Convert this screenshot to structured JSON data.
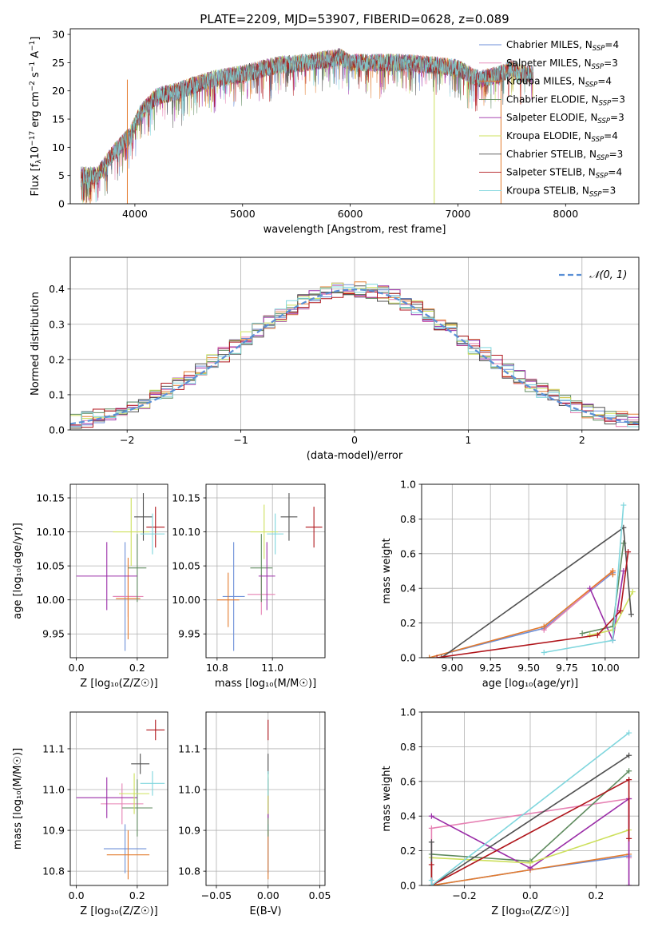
{
  "figure": {
    "title": "PLATE=2209, MJD=53907, FIBERID=0628, z=0.089"
  },
  "models": [
    {
      "name": "Chabrier MILES",
      "nssp": "4",
      "color": "#6c8fd8"
    },
    {
      "name": "Salpeter MILES",
      "nssp": "3",
      "color": "#e682b4"
    },
    {
      "name": "Kroupa MILES",
      "nssp": "4",
      "color": "#e37b2e"
    },
    {
      "name": "Chabrier ELODIE",
      "nssp": "3",
      "color": "#5e8a5e"
    },
    {
      "name": "Salpeter ELODIE",
      "nssp": "3",
      "color": "#9b2ea8"
    },
    {
      "name": "Kroupa ELODIE",
      "nssp": "4",
      "color": "#cde05c"
    },
    {
      "name": "Chabrier STELIB",
      "nssp": "3",
      "color": "#505050"
    },
    {
      "name": "Salpeter STELIB",
      "nssp": "4",
      "color": "#b0161c"
    },
    {
      "name": "Kroupa STELIB",
      "nssp": "3",
      "color": "#7fd6dd"
    }
  ],
  "chart_data": [
    {
      "id": "spectrum",
      "type": "line",
      "xlabel": "wavelength [Angstrom, rest frame]",
      "ylabel": "Flux [f",
      "ylabel_sub": "λ",
      "ylabel_rest": "10",
      "ylabel_exp1": "−17",
      "ylabel_mid": " erg cm",
      "ylabel_exp2": "−2",
      "ylabel_mid2": " s",
      "ylabel_exp3": "−1",
      "ylabel_end": " A",
      "ylabel_exp4": "−1",
      "ylabel_close": "]",
      "xlim": [
        3400,
        8680
      ],
      "ylim": [
        0,
        31
      ],
      "xticks": [
        4000,
        5000,
        6000,
        7000,
        8000
      ],
      "yticks": [
        0,
        5,
        10,
        15,
        20,
        25,
        30
      ],
      "legend": "top-right",
      "legend_nssp_prefix": "N",
      "legend_nssp_sub": "SSP",
      "continuum_anchors": [
        [
          3500,
          5
        ],
        [
          3650,
          5
        ],
        [
          3800,
          9
        ],
        [
          3950,
          12
        ],
        [
          4050,
          16
        ],
        [
          4200,
          19
        ],
        [
          4400,
          20
        ],
        [
          4700,
          22
        ],
        [
          5000,
          23
        ],
        [
          5300,
          24.5
        ],
        [
          5600,
          25
        ],
        [
          5900,
          26
        ],
        [
          6000,
          25
        ],
        [
          6200,
          25
        ],
        [
          6500,
          25
        ],
        [
          6800,
          24.5
        ],
        [
          7000,
          24
        ],
        [
          7200,
          22
        ],
        [
          7400,
          23
        ],
        [
          7500,
          24
        ],
        [
          7600,
          23
        ],
        [
          7700,
          23
        ]
      ],
      "dropouts": [
        {
          "x": 3930,
          "model": "Kroupa MILES"
        },
        {
          "x": 6780,
          "model": "Kroupa ELODIE"
        },
        {
          "x": 7400,
          "model": "Kroupa MILES"
        }
      ]
    },
    {
      "id": "residuals",
      "type": "histogram",
      "xlabel": "(data-model)/error",
      "ylabel": "Normed distribution",
      "xlim": [
        -2.5,
        2.5
      ],
      "ylim": [
        0,
        0.49
      ],
      "xticks": [
        -2,
        -1,
        0,
        1,
        2
      ],
      "yticks": [
        0.0,
        0.1,
        0.2,
        0.3,
        0.4
      ],
      "bin_width": 0.1,
      "reference": {
        "name": "𝒩(0, 1)",
        "color": "#5a8fd6",
        "style": "dashed"
      },
      "legend": "top-right",
      "grid": true
    },
    {
      "id": "age-vs-Z",
      "type": "errorbar",
      "xlabel": "Z [log₁₀(Z/Z☉)]",
      "ylabel": "age  [log₁₀(age/yr)]",
      "xlim": [
        -0.02,
        0.3
      ],
      "ylim": [
        9.915,
        10.17
      ],
      "xticks": [
        0.0,
        0.2
      ],
      "yticks": [
        9.95,
        10.0,
        10.05,
        10.1,
        10.15
      ],
      "points": [
        {
          "model": "Chabrier MILES",
          "x": 0.16,
          "xerr": 0.04,
          "y": 10.005,
          "yerr": 0.08
        },
        {
          "model": "Salpeter MILES",
          "x": 0.17,
          "xerr": 0.05,
          "y": 10.005,
          "yerr": 0.03
        },
        {
          "model": "Kroupa MILES",
          "x": 0.17,
          "xerr": 0.04,
          "y": 10.002,
          "yerr": 0.06
        },
        {
          "model": "Chabrier ELODIE",
          "x": 0.2,
          "xerr": 0.03,
          "y": 10.047,
          "yerr": 0.05
        },
        {
          "model": "Salpeter ELODIE",
          "x": 0.1,
          "xerr": 0.1,
          "y": 10.035,
          "yerr": 0.05
        },
        {
          "model": "Kroupa ELODIE",
          "x": 0.18,
          "xerr": 0.06,
          "y": 10.1,
          "yerr": 0.05
        },
        {
          "model": "Chabrier STELIB",
          "x": 0.22,
          "xerr": 0.03,
          "y": 10.122,
          "yerr": 0.035
        },
        {
          "model": "Salpeter STELIB",
          "x": 0.26,
          "xerr": 0.03,
          "y": 10.107,
          "yerr": 0.03
        },
        {
          "model": "Kroupa STELIB",
          "x": 0.25,
          "xerr": 0.04,
          "y": 10.097,
          "yerr": 0.03
        }
      ]
    },
    {
      "id": "age-vs-mass",
      "type": "errorbar",
      "xlabel": "mass [log₁₀(M/M☉)]",
      "ylabel": "",
      "xlim": [
        10.76,
        11.19
      ],
      "ylim": [
        9.915,
        10.17
      ],
      "xticks": [
        10.8,
        11.0
      ],
      "yticks": [
        9.95,
        10.0,
        10.05,
        10.1,
        10.15
      ],
      "points": [
        {
          "model": "Chabrier MILES",
          "x": 10.86,
          "xerr": 0.04,
          "y": 10.005,
          "yerr": 0.08
        },
        {
          "model": "Salpeter MILES",
          "x": 10.96,
          "xerr": 0.05,
          "y": 10.008,
          "yerr": 0.03
        },
        {
          "model": "Kroupa MILES",
          "x": 10.84,
          "xerr": 0.04,
          "y": 10.0,
          "yerr": 0.04
        },
        {
          "model": "Chabrier ELODIE",
          "x": 10.96,
          "xerr": 0.04,
          "y": 10.047,
          "yerr": 0.05
        },
        {
          "model": "Salpeter ELODIE",
          "x": 10.98,
          "xerr": 0.03,
          "y": 10.035,
          "yerr": 0.05
        },
        {
          "model": "Kroupa ELODIE",
          "x": 10.97,
          "xerr": 0.05,
          "y": 10.1,
          "yerr": 0.04
        },
        {
          "model": "Chabrier STELIB",
          "x": 11.06,
          "xerr": 0.03,
          "y": 10.122,
          "yerr": 0.035
        },
        {
          "model": "Salpeter STELIB",
          "x": 11.15,
          "xerr": 0.03,
          "y": 10.107,
          "yerr": 0.03
        },
        {
          "model": "Kroupa STELIB",
          "x": 11.01,
          "xerr": 0.03,
          "y": 10.097,
          "yerr": 0.03
        }
      ]
    },
    {
      "id": "weight-vs-age",
      "type": "line",
      "xlabel": "age  [log₁₀(age/yr)]",
      "ylabel": "mass weight",
      "xlim": [
        8.8,
        10.22
      ],
      "ylim": [
        0,
        1
      ],
      "xticks": [
        9.0,
        9.25,
        9.5,
        9.75,
        10.0
      ],
      "yticks": [
        0.0,
        0.2,
        0.4,
        0.6,
        0.8,
        1.0
      ],
      "grid": true,
      "series": [
        {
          "model": "Chabrier MILES",
          "x": [
            8.85,
            9.6,
            10.05
          ],
          "y": [
            0.0,
            0.17,
            0.49
          ]
        },
        {
          "model": "Salpeter MILES",
          "x": [
            9.6,
            10.05
          ],
          "y": [
            0.16,
            0.5
          ]
        },
        {
          "model": "Kroupa MILES",
          "x": [
            8.85,
            9.6,
            10.05,
            10.05
          ],
          "y": [
            0.0,
            0.18,
            0.5,
            0.48
          ]
        },
        {
          "model": "Chabrier ELODIE",
          "x": [
            9.85,
            10.05,
            10.12
          ],
          "y": [
            0.14,
            0.18,
            0.66
          ]
        },
        {
          "model": "Salpeter ELODIE",
          "x": [
            9.9,
            10.05,
            10.12
          ],
          "y": [
            0.4,
            0.1,
            0.5
          ]
        },
        {
          "model": "Kroupa ELODIE",
          "x": [
            9.9,
            10.05,
            10.18
          ],
          "y": [
            0.13,
            0.16,
            0.38
          ]
        },
        {
          "model": "Chabrier STELIB",
          "x": [
            8.93,
            10.12,
            10.17
          ],
          "y": [
            0.0,
            0.75,
            0.25
          ]
        },
        {
          "model": "Salpeter STELIB",
          "x": [
            8.9,
            9.95,
            10.1,
            10.15
          ],
          "y": [
            0.0,
            0.13,
            0.27,
            0.61
          ]
        },
        {
          "model": "Kroupa STELIB",
          "x": [
            9.6,
            10.05,
            10.12
          ],
          "y": [
            0.03,
            0.1,
            0.88
          ]
        }
      ]
    },
    {
      "id": "mass-vs-Z",
      "type": "errorbar",
      "xlabel": "Z [log₁₀(Z/Z☉)]",
      "ylabel": "mass [log₁₀(M/M☉)]",
      "xlim": [
        -0.02,
        0.3
      ],
      "ylim": [
        10.765,
        11.19
      ],
      "xticks": [
        0.0,
        0.2
      ],
      "yticks": [
        10.8,
        10.9,
        11.0,
        11.1
      ],
      "points": [
        {
          "model": "Chabrier MILES",
          "x": 0.16,
          "xerr": 0.07,
          "y": 10.855,
          "yerr": 0.06
        },
        {
          "model": "Salpeter MILES",
          "x": 0.15,
          "xerr": 0.07,
          "y": 10.965,
          "yerr": 0.05
        },
        {
          "model": "Kroupa MILES",
          "x": 0.17,
          "xerr": 0.07,
          "y": 10.84,
          "yerr": 0.06
        },
        {
          "model": "Chabrier ELODIE",
          "x": 0.2,
          "xerr": 0.05,
          "y": 10.955,
          "yerr": 0.07
        },
        {
          "model": "Salpeter ELODIE",
          "x": 0.1,
          "xerr": 0.1,
          "y": 10.98,
          "yerr": 0.05
        },
        {
          "model": "Kroupa ELODIE",
          "x": 0.19,
          "xerr": 0.05,
          "y": 10.99,
          "yerr": 0.05
        },
        {
          "model": "Chabrier STELIB",
          "x": 0.21,
          "xerr": 0.03,
          "y": 11.063,
          "yerr": 0.025
        },
        {
          "model": "Salpeter STELIB",
          "x": 0.26,
          "xerr": 0.03,
          "y": 11.146,
          "yerr": 0.025
        },
        {
          "model": "Kroupa STELIB",
          "x": 0.25,
          "xerr": 0.04,
          "y": 11.015,
          "yerr": 0.03
        }
      ]
    },
    {
      "id": "mass-vs-ebv",
      "type": "errorbar",
      "xlabel": "E(B-V)",
      "ylabel": "",
      "xlim": [
        -0.06,
        0.055
      ],
      "ylim": [
        10.765,
        11.19
      ],
      "xticks": [
        -0.05,
        0.0,
        0.05
      ],
      "yticks": [
        10.8,
        10.9,
        11.0,
        11.1
      ],
      "points": [
        {
          "model": "Chabrier MILES",
          "x": 0.0,
          "xerr": 0.0,
          "y": 10.855,
          "yerr": 0.06
        },
        {
          "model": "Salpeter MILES",
          "x": 0.0,
          "xerr": 0.0,
          "y": 10.965,
          "yerr": 0.05
        },
        {
          "model": "Kroupa MILES",
          "x": 0.0,
          "xerr": 0.0,
          "y": 10.84,
          "yerr": 0.06
        },
        {
          "model": "Chabrier ELODIE",
          "x": 0.0,
          "xerr": 0.0,
          "y": 10.955,
          "yerr": 0.07
        },
        {
          "model": "Salpeter ELODIE",
          "x": 0.0,
          "xerr": 0.0,
          "y": 10.98,
          "yerr": 0.05
        },
        {
          "model": "Kroupa ELODIE",
          "x": 0.0,
          "xerr": 0.0,
          "y": 10.99,
          "yerr": 0.05
        },
        {
          "model": "Chabrier STELIB",
          "x": 0.0,
          "xerr": 0.0,
          "y": 11.063,
          "yerr": 0.025
        },
        {
          "model": "Salpeter STELIB",
          "x": 0.0,
          "xerr": 0.0,
          "y": 11.146,
          "yerr": 0.025
        },
        {
          "model": "Kroupa STELIB",
          "x": 0.0,
          "xerr": 0.0,
          "y": 11.015,
          "yerr": 0.03
        }
      ]
    },
    {
      "id": "weight-vs-Z",
      "type": "line",
      "xlabel": "Z [log₁₀(Z/Z☉)]",
      "ylabel": "mass weight",
      "xlim": [
        -0.33,
        0.33
      ],
      "ylim": [
        0,
        1
      ],
      "xticks": [
        -0.2,
        0.0,
        0.2
      ],
      "yticks": [
        0.0,
        0.2,
        0.4,
        0.6,
        0.8,
        1.0
      ],
      "grid": true,
      "series": [
        {
          "model": "Chabrier MILES",
          "x": [
            -0.3,
            0.0,
            0.3
          ],
          "y": [
            0.0,
            0.09,
            0.17
          ]
        },
        {
          "model": "Salpeter MILES",
          "x": [
            -0.3,
            -0.3,
            0.3,
            0.3
          ],
          "y": [
            0.0,
            0.33,
            0.5,
            0.16
          ]
        },
        {
          "model": "Kroupa MILES",
          "x": [
            -0.3,
            0.0,
            0.3
          ],
          "y": [
            0.0,
            0.09,
            0.18
          ]
        },
        {
          "model": "Chabrier ELODIE",
          "x": [
            -0.3,
            0.0,
            0.3
          ],
          "y": [
            0.18,
            0.14,
            0.66
          ]
        },
        {
          "model": "Salpeter ELODIE",
          "x": [
            -0.3,
            0.0,
            0.3,
            0.3
          ],
          "y": [
            0.4,
            0.1,
            0.5,
            0.0
          ]
        },
        {
          "model": "Kroupa ELODIE",
          "x": [
            -0.3,
            0.0,
            0.3
          ],
          "y": [
            0.16,
            0.13,
            0.32
          ]
        },
        {
          "model": "Chabrier STELIB",
          "x": [
            -0.3,
            -0.3,
            0.3
          ],
          "y": [
            0.25,
            0.0,
            0.75
          ]
        },
        {
          "model": "Salpeter STELIB",
          "x": [
            -0.3,
            -0.3,
            0.3,
            0.3
          ],
          "y": [
            0.12,
            0.0,
            0.61,
            0.27
          ]
        },
        {
          "model": "Kroupa STELIB",
          "x": [
            -0.3,
            -0.3,
            0.3
          ],
          "y": [
            0.03,
            0.0,
            0.88
          ]
        }
      ]
    }
  ]
}
